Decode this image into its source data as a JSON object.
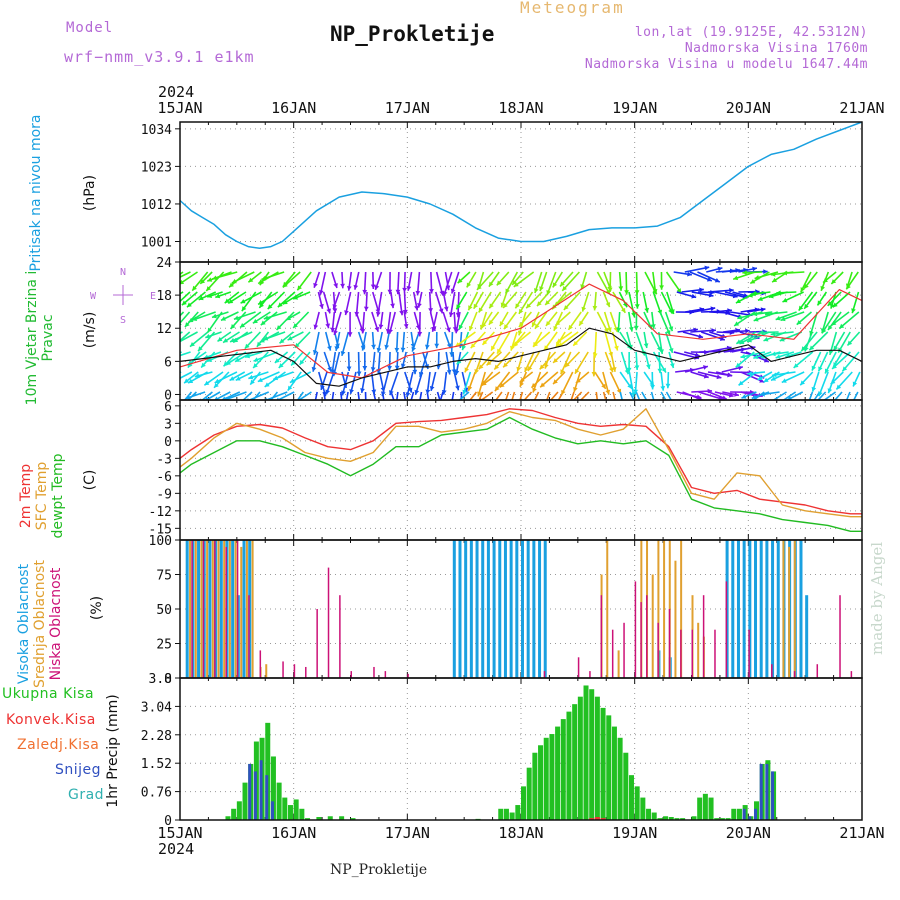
{
  "header": {
    "model_label": "Model",
    "model_name": "wrf−nmm_v3.9.1  e1km",
    "meteogram": "Meteogram",
    "title": "NP_Prokletije",
    "lonlat": "lon,lat (19.9125E, 42.5312N)",
    "altitude": "Nadmorska Visina 1760m",
    "model_altitude": "Nadmorska Visina u modelu 1647.44m"
  },
  "footer": {
    "station": "NP_Prokletije",
    "credit": "made by Angel"
  },
  "colors": {
    "pressure": "#1aa0e0",
    "wind_label": "#22bb33",
    "wind_speed": "#111111",
    "wind_gust": "#ee3333",
    "t2m": "#ee3333",
    "sfc": "#e0a030",
    "dew": "#22bb22",
    "cloud_high": "#1aa0e0",
    "cloud_mid": "#e0a030",
    "cloud_low": "#cc1177",
    "precip_total": "#22c022",
    "precip_snow": "#3050c0",
    "precip_conv": "#ee3333",
    "precip_frz": "#f07030",
    "precip_hail": "#30b0b0",
    "grid": "#999999",
    "label_purple": "#b469d6"
  },
  "time_axis": {
    "year": "2024",
    "days": [
      "15JAN",
      "16JAN",
      "17JAN",
      "18JAN",
      "19JAN",
      "20JAN",
      "21JAN"
    ]
  },
  "chart_data": [
    {
      "id": "pressure",
      "type": "line",
      "ylabel": "Pritisak na nivou mora",
      "unit": "(hPa)",
      "yticks": [
        1001,
        1012,
        1023,
        1034
      ],
      "ylim": [
        995,
        1036
      ],
      "series": [
        {
          "x": [
            0,
            0.1,
            0.2,
            0.3,
            0.4,
            0.5,
            0.6,
            0.7,
            0.8,
            0.9,
            1.0,
            1.2,
            1.4,
            1.6,
            1.8,
            2.0,
            2.2,
            2.4,
            2.6,
            2.8,
            3.0,
            3.2,
            3.4,
            3.6,
            3.8,
            4.0,
            4.2,
            4.4,
            4.6,
            4.8,
            5.0,
            5.2,
            5.4,
            5.6,
            5.8,
            6.0
          ],
          "values": [
            1013,
            1010,
            1008,
            1006,
            1003,
            1001,
            999.5,
            999,
            999.5,
            1001,
            1004,
            1010,
            1014,
            1015.5,
            1015,
            1014,
            1012,
            1009,
            1005,
            1002,
            1001,
            1001,
            1002.5,
            1004.5,
            1005,
            1005,
            1005.5,
            1008,
            1013,
            1018,
            1023,
            1026.5,
            1028,
            1031,
            1033.5,
            1036
          ]
        }
      ]
    },
    {
      "id": "wind",
      "type": "line",
      "ylabel": "10m Vjetar Brzina i Pravac",
      "unit": "(m/s)",
      "yticks": [
        0,
        6,
        12,
        18,
        24
      ],
      "ylim": [
        -1,
        24
      ],
      "compass": [
        "N",
        "W",
        "E",
        "S"
      ],
      "series": [
        {
          "name": "speed",
          "x": [
            0,
            0.2,
            0.4,
            0.6,
            0.8,
            1.0,
            1.2,
            1.4,
            1.6,
            1.8,
            2.0,
            2.2,
            2.4,
            2.6,
            2.8,
            3.0,
            3.2,
            3.4,
            3.6,
            3.8,
            4.0,
            4.2,
            4.4,
            4.6,
            4.8,
            5.0,
            5.2,
            5.4,
            5.6,
            5.8,
            6.0
          ],
          "values": [
            6,
            6.5,
            7,
            7.5,
            8,
            6,
            2,
            1.5,
            3,
            4,
            5,
            5,
            6,
            6.5,
            6,
            7,
            8,
            9,
            12,
            11,
            8,
            7,
            6,
            7,
            8,
            9,
            6,
            7,
            8,
            8,
            6
          ]
        },
        {
          "name": "gust",
          "x": [
            0,
            0.5,
            1.0,
            1.3,
            1.6,
            2.0,
            2.5,
            3.0,
            3.3,
            3.6,
            3.9,
            4.2,
            4.6,
            5.0,
            5.4,
            5.8,
            6.0
          ],
          "values": [
            5,
            8,
            9,
            4,
            3,
            7,
            9,
            12,
            16,
            20,
            17,
            11,
            10,
            11,
            10,
            19,
            17
          ]
        }
      ]
    },
    {
      "id": "temp",
      "type": "line",
      "ylabel": "2m Temp  SFC Temp  dewpt Temp",
      "unit": "(C)",
      "yticks": [
        -15,
        -12,
        -9,
        -6,
        -3,
        0,
        3,
        6
      ],
      "ylim": [
        -17,
        7
      ],
      "series": [
        {
          "name": "2m Temp",
          "x": [
            0,
            0.1,
            0.3,
            0.5,
            0.7,
            0.9,
            1.1,
            1.3,
            1.5,
            1.7,
            1.9,
            2.1,
            2.3,
            2.5,
            2.7,
            2.9,
            3.1,
            3.3,
            3.5,
            3.7,
            3.9,
            4.1,
            4.3,
            4.5,
            4.7,
            4.9,
            5.1,
            5.3,
            5.5,
            5.7,
            5.9,
            6.0
          ],
          "values": [
            -3,
            -1.5,
            1,
            2.5,
            2.8,
            2.2,
            0.5,
            -1,
            -1.5,
            0,
            3,
            3.3,
            3.5,
            4,
            4.5,
            5.5,
            5.2,
            4,
            3,
            2.5,
            2.8,
            2.5,
            -1,
            -8,
            -9,
            -8.5,
            -10,
            -10.5,
            -11,
            -12,
            -12.5,
            -12.5
          ]
        },
        {
          "name": "SFC Temp",
          "x": [
            0,
            0.1,
            0.3,
            0.5,
            0.7,
            0.9,
            1.1,
            1.3,
            1.5,
            1.7,
            1.9,
            2.1,
            2.3,
            2.5,
            2.7,
            2.9,
            3.1,
            3.3,
            3.5,
            3.7,
            3.9,
            4.1,
            4.3,
            4.5,
            4.7,
            4.9,
            5.1,
            5.3,
            5.5,
            5.7,
            5.9,
            6.0
          ],
          "values": [
            -4.5,
            -3,
            0.5,
            3,
            2,
            0.5,
            -2,
            -3,
            -3.5,
            -2,
            2.5,
            2.5,
            1.5,
            2,
            3,
            5,
            4,
            3.5,
            2,
            1,
            2,
            5.5,
            -1.5,
            -9,
            -10,
            -5.5,
            -6,
            -11,
            -12,
            -12.5,
            -13,
            -13
          ]
        },
        {
          "name": "dewpt Temp",
          "x": [
            0,
            0.1,
            0.3,
            0.5,
            0.7,
            0.9,
            1.1,
            1.3,
            1.5,
            1.7,
            1.9,
            2.1,
            2.3,
            2.5,
            2.7,
            2.9,
            3.1,
            3.3,
            3.5,
            3.7,
            3.9,
            4.1,
            4.3,
            4.5,
            4.7,
            4.9,
            5.1,
            5.3,
            5.5,
            5.7,
            5.9,
            6.0
          ],
          "values": [
            -5.5,
            -4,
            -2,
            0,
            0,
            -1,
            -2.5,
            -4,
            -6,
            -4,
            -1,
            -1,
            1,
            1.5,
            2,
            4,
            2,
            0.5,
            -0.5,
            0,
            -0.5,
            0,
            -2.5,
            -10,
            -11.5,
            -12,
            -12.5,
            -13.5,
            -14,
            -14.5,
            -15.5,
            -15.5
          ]
        }
      ]
    },
    {
      "id": "clouds",
      "type": "bar",
      "ylabel": "Visoka Oblacnost  Srednja Oblacnost  Niska Oblacnost",
      "unit": "(%)",
      "yticks": [
        0,
        25,
        50,
        75,
        100
      ],
      "ylim": [
        0,
        100
      ],
      "series": [
        {
          "name": "Visoka Oblacnost",
          "x": [
            0.05,
            0.1,
            0.15,
            0.2,
            0.25,
            0.3,
            0.35,
            0.4,
            0.45,
            0.5,
            0.55,
            0.6,
            2.4,
            2.45,
            2.5,
            2.55,
            2.6,
            2.65,
            2.7,
            2.75,
            2.8,
            2.85,
            2.9,
            2.95,
            3.0,
            3.05,
            3.1,
            3.15,
            3.2,
            4.2,
            4.3,
            4.8,
            4.85,
            4.9,
            4.95,
            5.0,
            5.05,
            5.1,
            5.15,
            5.2,
            5.25,
            5.3,
            5.35,
            5.4,
            5.45,
            5.5
          ],
          "values": [
            100,
            100,
            100,
            100,
            100,
            100,
            100,
            100,
            100,
            60,
            100,
            100,
            100,
            100,
            100,
            100,
            100,
            100,
            100,
            100,
            100,
            100,
            100,
            100,
            100,
            100,
            100,
            100,
            100,
            20,
            15,
            100,
            100,
            100,
            100,
            100,
            100,
            100,
            100,
            100,
            100,
            100,
            100,
            100,
            100,
            60
          ]
        },
        {
          "name": "Srednja Oblacnost",
          "x": [
            0.08,
            0.13,
            0.18,
            0.23,
            0.28,
            0.33,
            0.38,
            0.43,
            0.48,
            0.53,
            0.58,
            0.63,
            0.7,
            0.75,
            3.7,
            3.75,
            3.85,
            4.05,
            4.1,
            4.15,
            4.2,
            4.25,
            4.3,
            4.35,
            4.4,
            4.5,
            4.55,
            4.6,
            5.3,
            5.35,
            5.4
          ],
          "values": [
            100,
            100,
            100,
            100,
            100,
            100,
            100,
            100,
            100,
            95,
            100,
            100,
            8,
            10,
            75,
            100,
            20,
            100,
            100,
            75,
            100,
            100,
            100,
            85,
            100,
            60,
            40,
            30,
            100,
            95,
            100
          ]
        },
        {
          "name": "Niska Oblacnost",
          "x": [
            0.1,
            0.2,
            0.3,
            0.4,
            0.5,
            0.6,
            0.7,
            0.9,
            1.0,
            1.1,
            1.2,
            1.3,
            1.4,
            1.5,
            1.7,
            1.8,
            2.0,
            3.2,
            3.5,
            3.6,
            3.7,
            3.8,
            3.9,
            4.0,
            4.05,
            4.1,
            4.2,
            4.3,
            4.4,
            4.5,
            4.6,
            4.7,
            4.8,
            5.0,
            5.2,
            5.4,
            5.6,
            5.8,
            5.9
          ],
          "values": [
            100,
            100,
            100,
            95,
            100,
            60,
            20,
            12,
            10,
            8,
            50,
            80,
            60,
            5,
            8,
            5,
            3,
            5,
            15,
            5,
            60,
            35,
            40,
            70,
            55,
            60,
            40,
            50,
            35,
            35,
            60,
            35,
            70,
            35,
            10,
            5,
            10,
            60,
            5
          ]
        }
      ]
    },
    {
      "id": "precip",
      "type": "bar",
      "ylabel": "1hr Precip (mm)",
      "yticks": [
        0,
        0.76,
        1.52,
        2.28,
        3.04,
        3.8
      ],
      "ylim": [
        0,
        3.8
      ],
      "legend": [
        "Ukupna Kisa",
        "Konvek.Kisa",
        "Zaledj.Kisa",
        "Snijeg",
        "Grad"
      ],
      "series": [
        {
          "name": "Ukupna Kisa",
          "x": [
            0.4,
            0.45,
            0.5,
            0.55,
            0.6,
            0.65,
            0.7,
            0.75,
            0.8,
            0.85,
            0.9,
            0.95,
            1.0,
            1.05,
            1.1,
            1.2,
            1.3,
            1.4,
            1.5,
            2.6,
            2.8,
            2.85,
            2.9,
            2.95,
            3.0,
            3.05,
            3.1,
            3.15,
            3.2,
            3.25,
            3.3,
            3.35,
            3.4,
            3.45,
            3.5,
            3.55,
            3.6,
            3.65,
            3.7,
            3.75,
            3.8,
            3.85,
            3.9,
            3.95,
            4.0,
            4.05,
            4.1,
            4.15,
            4.2,
            4.25,
            4.3,
            4.35,
            4.4,
            4.5,
            4.55,
            4.6,
            4.65,
            4.7,
            4.75,
            4.8,
            4.85,
            4.9,
            4.95,
            5.0,
            5.05,
            5.1,
            5.15,
            5.2
          ],
          "values": [
            0.1,
            0.3,
            0.5,
            1.0,
            1.5,
            2.1,
            2.2,
            2.6,
            1.7,
            1.0,
            0.6,
            0.4,
            0.55,
            0.3,
            0.05,
            0.08,
            0.1,
            0.1,
            0.05,
            0.03,
            0.3,
            0.3,
            0.2,
            0.4,
            0.9,
            1.4,
            1.8,
            2.0,
            2.2,
            2.3,
            2.5,
            2.7,
            2.9,
            3.1,
            3.3,
            3.6,
            3.5,
            3.3,
            3.0,
            2.8,
            2.5,
            2.2,
            1.8,
            1.2,
            0.9,
            0.6,
            0.3,
            0.2,
            0.05,
            0.1,
            0.08,
            0.05,
            0.05,
            0.1,
            0.6,
            0.7,
            0.6,
            0.05,
            0.05,
            0.05,
            0.3,
            0.3,
            0.4,
            0.1,
            0.5,
            1.5,
            1.6,
            1.3
          ]
        },
        {
          "name": "Snijeg",
          "x": [
            0.6,
            0.65,
            0.7,
            0.75,
            0.8,
            4.95,
            5.0,
            5.05,
            5.1,
            5.15,
            5.2
          ],
          "values": [
            1.5,
            1.3,
            1.6,
            1.2,
            0.5,
            0.3,
            0.1,
            0.3,
            1.5,
            1.5,
            1.3
          ]
        },
        {
          "name": "Konvek.Kisa",
          "x": [
            3.6,
            3.65,
            3.7
          ],
          "values": [
            0.05,
            0.08,
            0.05
          ]
        }
      ]
    }
  ]
}
